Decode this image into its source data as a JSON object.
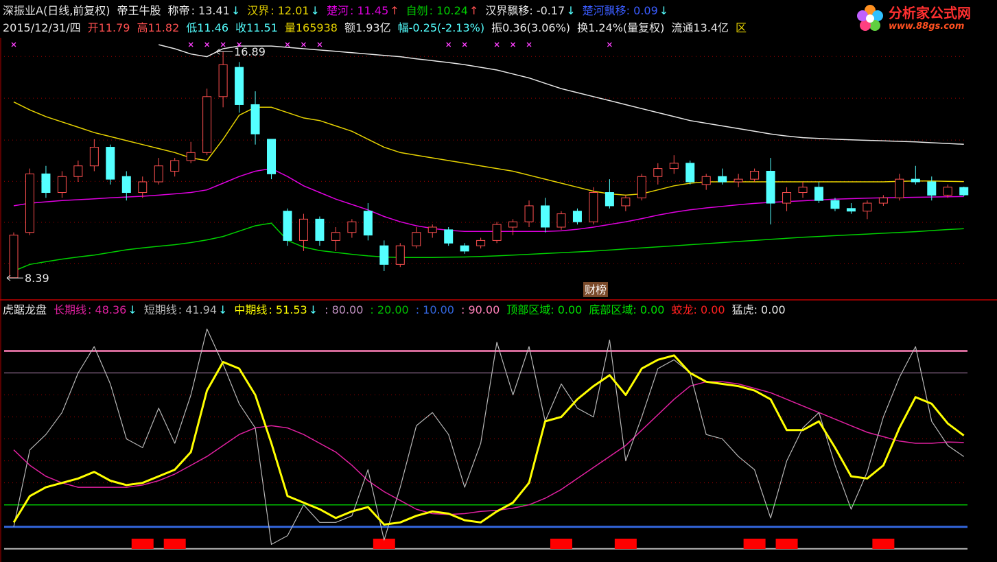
{
  "logo": {
    "name": "分析家公式网",
    "url": "www.88gs.com"
  },
  "chart_data": [
    {
      "type": "candlestick",
      "title": "深振业A(日线,前复权)",
      "subtitle": "帝王牛股",
      "up_color": "#ff5050",
      "down_color": "#54ffff",
      "ylim": [
        7.62,
        17.54
      ],
      "yticks": [
        8.93,
        10.48,
        12.02,
        13.57,
        15.14,
        16.71
      ],
      "grid": true,
      "open": [
        8.4,
        10.1,
        12.3,
        11.6,
        12.2,
        12.6,
        13.3,
        12.2,
        11.6,
        12.0,
        12.4,
        12.8,
        13.1,
        15.2,
        16.3,
        14.9,
        13.6,
        10.9,
        9.8,
        10.6,
        9.8,
        10.1,
        10.9,
        9.6,
        8.9,
        9.6,
        10.1,
        10.2,
        9.6,
        9.6,
        9.8,
        10.3,
        10.5,
        11.1,
        10.3,
        10.9,
        10.5,
        11.6,
        11.1,
        11.4,
        12.2,
        12.5,
        12.7,
        11.9,
        12.2,
        12.0,
        12.1,
        12.4,
        11.2,
        11.6,
        11.8,
        11.3,
        11.0,
        10.9,
        11.2,
        11.4,
        12.1,
        12.0,
        11.5,
        11.79
      ],
      "high": [
        10.1,
        12.5,
        12.6,
        12.4,
        12.8,
        13.6,
        13.4,
        12.4,
        12.2,
        12.9,
        12.9,
        13.5,
        15.5,
        16.89,
        16.5,
        15.4,
        13.6,
        11.0,
        10.8,
        10.7,
        10.3,
        10.6,
        11.2,
        9.8,
        9.7,
        10.3,
        10.4,
        10.3,
        9.7,
        9.9,
        10.5,
        10.6,
        11.3,
        11.4,
        10.9,
        11.0,
        11.8,
        12.1,
        11.5,
        12.3,
        12.7,
        13.0,
        12.8,
        12.3,
        12.5,
        12.3,
        12.5,
        12.9,
        11.8,
        12.0,
        12.0,
        11.4,
        11.2,
        11.3,
        11.5,
        12.3,
        12.6,
        12.2,
        11.9,
        11.82
      ],
      "low": [
        8.39,
        10.0,
        11.4,
        11.4,
        12.0,
        12.4,
        11.9,
        11.3,
        11.4,
        11.9,
        12.2,
        12.7,
        13.0,
        14.8,
        14.6,
        13.4,
        12.1,
        9.6,
        9.4,
        9.6,
        9.4,
        9.9,
        9.8,
        8.65,
        8.8,
        9.5,
        9.9,
        9.6,
        9.3,
        9.5,
        9.7,
        10.0,
        10.3,
        10.1,
        10.2,
        10.4,
        10.4,
        11.0,
        10.9,
        11.3,
        11.9,
        12.3,
        11.9,
        11.7,
        11.9,
        11.8,
        12.0,
        10.4,
        10.9,
        11.4,
        11.2,
        10.9,
        10.8,
        10.6,
        11.1,
        11.3,
        11.9,
        11.3,
        11.4,
        11.46
      ],
      "close": [
        10.0,
        12.3,
        11.6,
        12.2,
        12.6,
        13.3,
        12.1,
        11.6,
        12.0,
        12.6,
        12.8,
        13.1,
        15.2,
        16.4,
        14.9,
        13.8,
        12.3,
        9.8,
        10.6,
        9.8,
        10.1,
        10.5,
        10.0,
        8.9,
        9.6,
        10.1,
        10.3,
        9.7,
        9.4,
        9.8,
        10.4,
        10.5,
        11.1,
        10.3,
        10.8,
        10.5,
        11.6,
        11.1,
        11.4,
        12.2,
        12.5,
        12.7,
        12.0,
        12.2,
        12.0,
        12.1,
        12.4,
        11.2,
        11.6,
        11.8,
        11.3,
        11.0,
        10.9,
        11.2,
        11.4,
        12.1,
        12.0,
        11.5,
        11.8,
        11.51
      ],
      "series": [
        {
          "name": "称帝",
          "value_label": ": 13.41",
          "arrow": "↓",
          "arrow_color": "#54ffff",
          "color": "#e8e8e8",
          "values": [
            null,
            null,
            null,
            null,
            null,
            null,
            null,
            null,
            null,
            17.15,
            17.0,
            16.8,
            16.7,
            17.0,
            17.1,
            17.1,
            17.1,
            17.05,
            17.0,
            16.95,
            16.9,
            16.85,
            16.8,
            16.75,
            16.7,
            16.62,
            16.55,
            16.48,
            16.4,
            16.3,
            16.2,
            16.05,
            15.9,
            15.7,
            15.5,
            15.35,
            15.2,
            15.05,
            14.9,
            14.75,
            14.6,
            14.45,
            14.3,
            14.2,
            14.1,
            14.0,
            13.9,
            13.8,
            13.72,
            13.66,
            13.63,
            13.6,
            13.58,
            13.56,
            13.54,
            13.52,
            13.5,
            13.47,
            13.44,
            13.41
          ]
        },
        {
          "name": "汉界",
          "value_label": ": 12.01",
          "arrow": "↓",
          "arrow_color": "#54ffff",
          "color": "#e6d200",
          "values": [
            15.0,
            14.7,
            14.45,
            14.25,
            14.05,
            13.85,
            13.7,
            13.55,
            13.4,
            13.25,
            13.1,
            12.9,
            12.8,
            13.6,
            14.5,
            14.8,
            14.8,
            14.6,
            14.4,
            14.3,
            14.1,
            13.9,
            13.6,
            13.3,
            13.1,
            13.0,
            12.9,
            12.8,
            12.7,
            12.6,
            12.5,
            12.4,
            12.25,
            12.1,
            11.95,
            11.8,
            11.65,
            11.55,
            11.5,
            11.55,
            11.7,
            11.85,
            11.95,
            12.0,
            12.0,
            12.0,
            12.0,
            12.0,
            12.0,
            12.0,
            12.0,
            12.0,
            12.0,
            12.0,
            12.0,
            12.02,
            12.03,
            12.03,
            12.02,
            12.01
          ]
        },
        {
          "name": "楚河",
          "value_label": ": 11.45",
          "arrow": "↑",
          "arrow_color": "#ff5050",
          "color": "#e000e0",
          "values": [
            11.1,
            11.2,
            11.25,
            11.3,
            11.33,
            11.36,
            11.4,
            11.43,
            11.46,
            11.5,
            11.55,
            11.6,
            11.7,
            11.95,
            12.2,
            12.4,
            12.5,
            12.2,
            11.85,
            11.6,
            11.35,
            11.15,
            10.95,
            10.7,
            10.5,
            10.35,
            10.25,
            10.18,
            10.14,
            10.14,
            10.14,
            10.14,
            10.14,
            10.14,
            10.16,
            10.22,
            10.3,
            10.4,
            10.5,
            10.62,
            10.75,
            10.86,
            10.95,
            11.02,
            11.08,
            11.14,
            11.19,
            11.23,
            11.26,
            11.29,
            11.32,
            11.35,
            11.37,
            11.39,
            11.4,
            11.41,
            11.42,
            11.43,
            11.44,
            11.45
          ]
        },
        {
          "name": "自刎",
          "value_label": ": 10.24",
          "arrow": "↑",
          "arrow_color": "#ff5050",
          "color": "#00d000",
          "values": [
            8.65,
            8.9,
            9.0,
            9.1,
            9.18,
            9.25,
            9.35,
            9.45,
            9.52,
            9.58,
            9.64,
            9.72,
            9.82,
            9.95,
            10.15,
            10.35,
            10.45,
            9.8,
            9.55,
            9.42,
            9.35,
            9.28,
            9.22,
            9.18,
            9.16,
            9.16,
            9.16,
            9.17,
            9.18,
            9.2,
            9.22,
            9.25,
            9.28,
            9.31,
            9.34,
            9.37,
            9.4,
            9.44,
            9.48,
            9.52,
            9.56,
            9.6,
            9.64,
            9.68,
            9.72,
            9.76,
            9.8,
            9.84,
            9.88,
            9.92,
            9.95,
            9.98,
            10.01,
            10.04,
            10.07,
            10.1,
            10.13,
            10.17,
            10.21,
            10.24
          ]
        }
      ],
      "extra_legend": [
        {
          "text": "汉界飘移: -0.17",
          "color": "#e8e8e8",
          "arrow": "↓",
          "arrow_color": "#54ffff"
        },
        {
          "text": "楚河飘移: 0.09",
          "color": "#3a5cff",
          "arrow": "↓",
          "arrow_color": "#54ffff"
        }
      ],
      "info": [
        {
          "text": "2015/12/31/四",
          "color": "#e8e8e8"
        },
        {
          "text": "开11.79",
          "color": "#ff5050"
        },
        {
          "text": "高11.82",
          "color": "#ff5050"
        },
        {
          "text": "低11.46",
          "color": "#54ffff"
        },
        {
          "text": "收11.51",
          "color": "#54ffff"
        },
        {
          "text": "量165938",
          "color": "#e6d200"
        },
        {
          "text": "额1.93亿",
          "color": "#e8e8e8"
        },
        {
          "text": "幅-0.25(-2.13%)",
          "color": "#54ffff"
        },
        {
          "text": "振0.36(3.06%)",
          "color": "#e8e8e8"
        },
        {
          "text": "换1.24%(量复权)",
          "color": "#e8e8e8"
        },
        {
          "text": "流通13.4亿",
          "color": "#e8e8e8"
        },
        {
          "text": "区",
          "color": "#e6d200"
        }
      ],
      "annotations": [
        {
          "index": 13,
          "value": 16.89,
          "label": "16.89"
        },
        {
          "index": 0,
          "value": 8.39,
          "label": "8.39"
        }
      ],
      "signal_marks": {
        "x": [
          0,
          11,
          12,
          13,
          14,
          17,
          18,
          19,
          27,
          28,
          30,
          31,
          32,
          37
        ],
        "color": "#ff40ff"
      },
      "badge": "财榜"
    },
    {
      "type": "line",
      "title": "虎踞龙盘",
      "ylim": [
        -6,
        112
      ],
      "yticks": [
        30,
        40,
        50,
        60,
        70
      ],
      "grid": true,
      "series": [
        {
          "name": "长期线",
          "value_label": ": 48.36",
          "arrow": "↓",
          "arrow_color": "#54ffff",
          "color": "#e020a0",
          "width": 1.5,
          "values": [
            45,
            38,
            33,
            30,
            28,
            28,
            28,
            28,
            29,
            31,
            34,
            38,
            42,
            47,
            52,
            55,
            56,
            55,
            52,
            48,
            44,
            38,
            31,
            26,
            22,
            18,
            16,
            15.6,
            16,
            17,
            17.5,
            18.5,
            20,
            23,
            27,
            32,
            37,
            42,
            47,
            54,
            61,
            68,
            74,
            76,
            76,
            75,
            73,
            71,
            68,
            65,
            62,
            59,
            56,
            53,
            51,
            49,
            48,
            48,
            48.6,
            48.36
          ]
        },
        {
          "name": "短期线",
          "value_label": ": 41.94",
          "arrow": "↓",
          "arrow_color": "#54ffff",
          "color": "#b8b8b8",
          "width": 1.2,
          "values": [
            10,
            45,
            52,
            62,
            80,
            92,
            75,
            50,
            46,
            64,
            48,
            70,
            100,
            84,
            66,
            55,
            2,
            6,
            20,
            12,
            12,
            15,
            36,
            4,
            28,
            56,
            62,
            52,
            28,
            48,
            94,
            70,
            92,
            58,
            75,
            64,
            60,
            95,
            40,
            60,
            82,
            86,
            80,
            52,
            50,
            42,
            36,
            14,
            40,
            55,
            62,
            38,
            18,
            35,
            60,
            78,
            92,
            58,
            47,
            41.94
          ]
        },
        {
          "name": "中期线",
          "value_label": ": 51.53",
          "arrow": "↓",
          "arrow_color": "#54ffff",
          "color": "#ffff00",
          "width": 3,
          "values": [
            12,
            24,
            28,
            30,
            32,
            35,
            31,
            29,
            30,
            33,
            36,
            44,
            72,
            85,
            82,
            70,
            48,
            24,
            21,
            18,
            14,
            17,
            19,
            11,
            12,
            15,
            17,
            16,
            13,
            12,
            17,
            21,
            30,
            58,
            60,
            68,
            74,
            79,
            70,
            82,
            86,
            88,
            80,
            76,
            75,
            74,
            72,
            68,
            54,
            54,
            58,
            46,
            33,
            32,
            38,
            55,
            69,
            66,
            57,
            51.53
          ]
        }
      ],
      "reference_lines": [
        {
          "value": 80,
          "label": ": 80.00",
          "color": "#c090c0",
          "width": 1
        },
        {
          "value": 20,
          "label": ": 20.00",
          "color": "#00c000",
          "width": 1.5
        },
        {
          "value": 10,
          "label": ": 10.00",
          "color": "#3366dd",
          "width": 3
        },
        {
          "value": 90,
          "label": ": 90.00",
          "color": "#ff80b8",
          "width": 2.5
        },
        {
          "value": 0,
          "color": "#b8b8b8",
          "width": 2
        }
      ],
      "extra_legend": [
        {
          "text": "顶部区域: 0.00",
          "color": "#00e000"
        },
        {
          "text": "底部区域: 0.00",
          "color": "#00e000"
        },
        {
          "text": "蛟龙: 0.00",
          "color": "#ff2020"
        },
        {
          "text": "猛虎: 0.00",
          "color": "#e8e8e8"
        }
      ],
      "signals": {
        "x": [
          8,
          10,
          23,
          34,
          38,
          46,
          48,
          54
        ],
        "color": "#ff0000"
      }
    }
  ]
}
